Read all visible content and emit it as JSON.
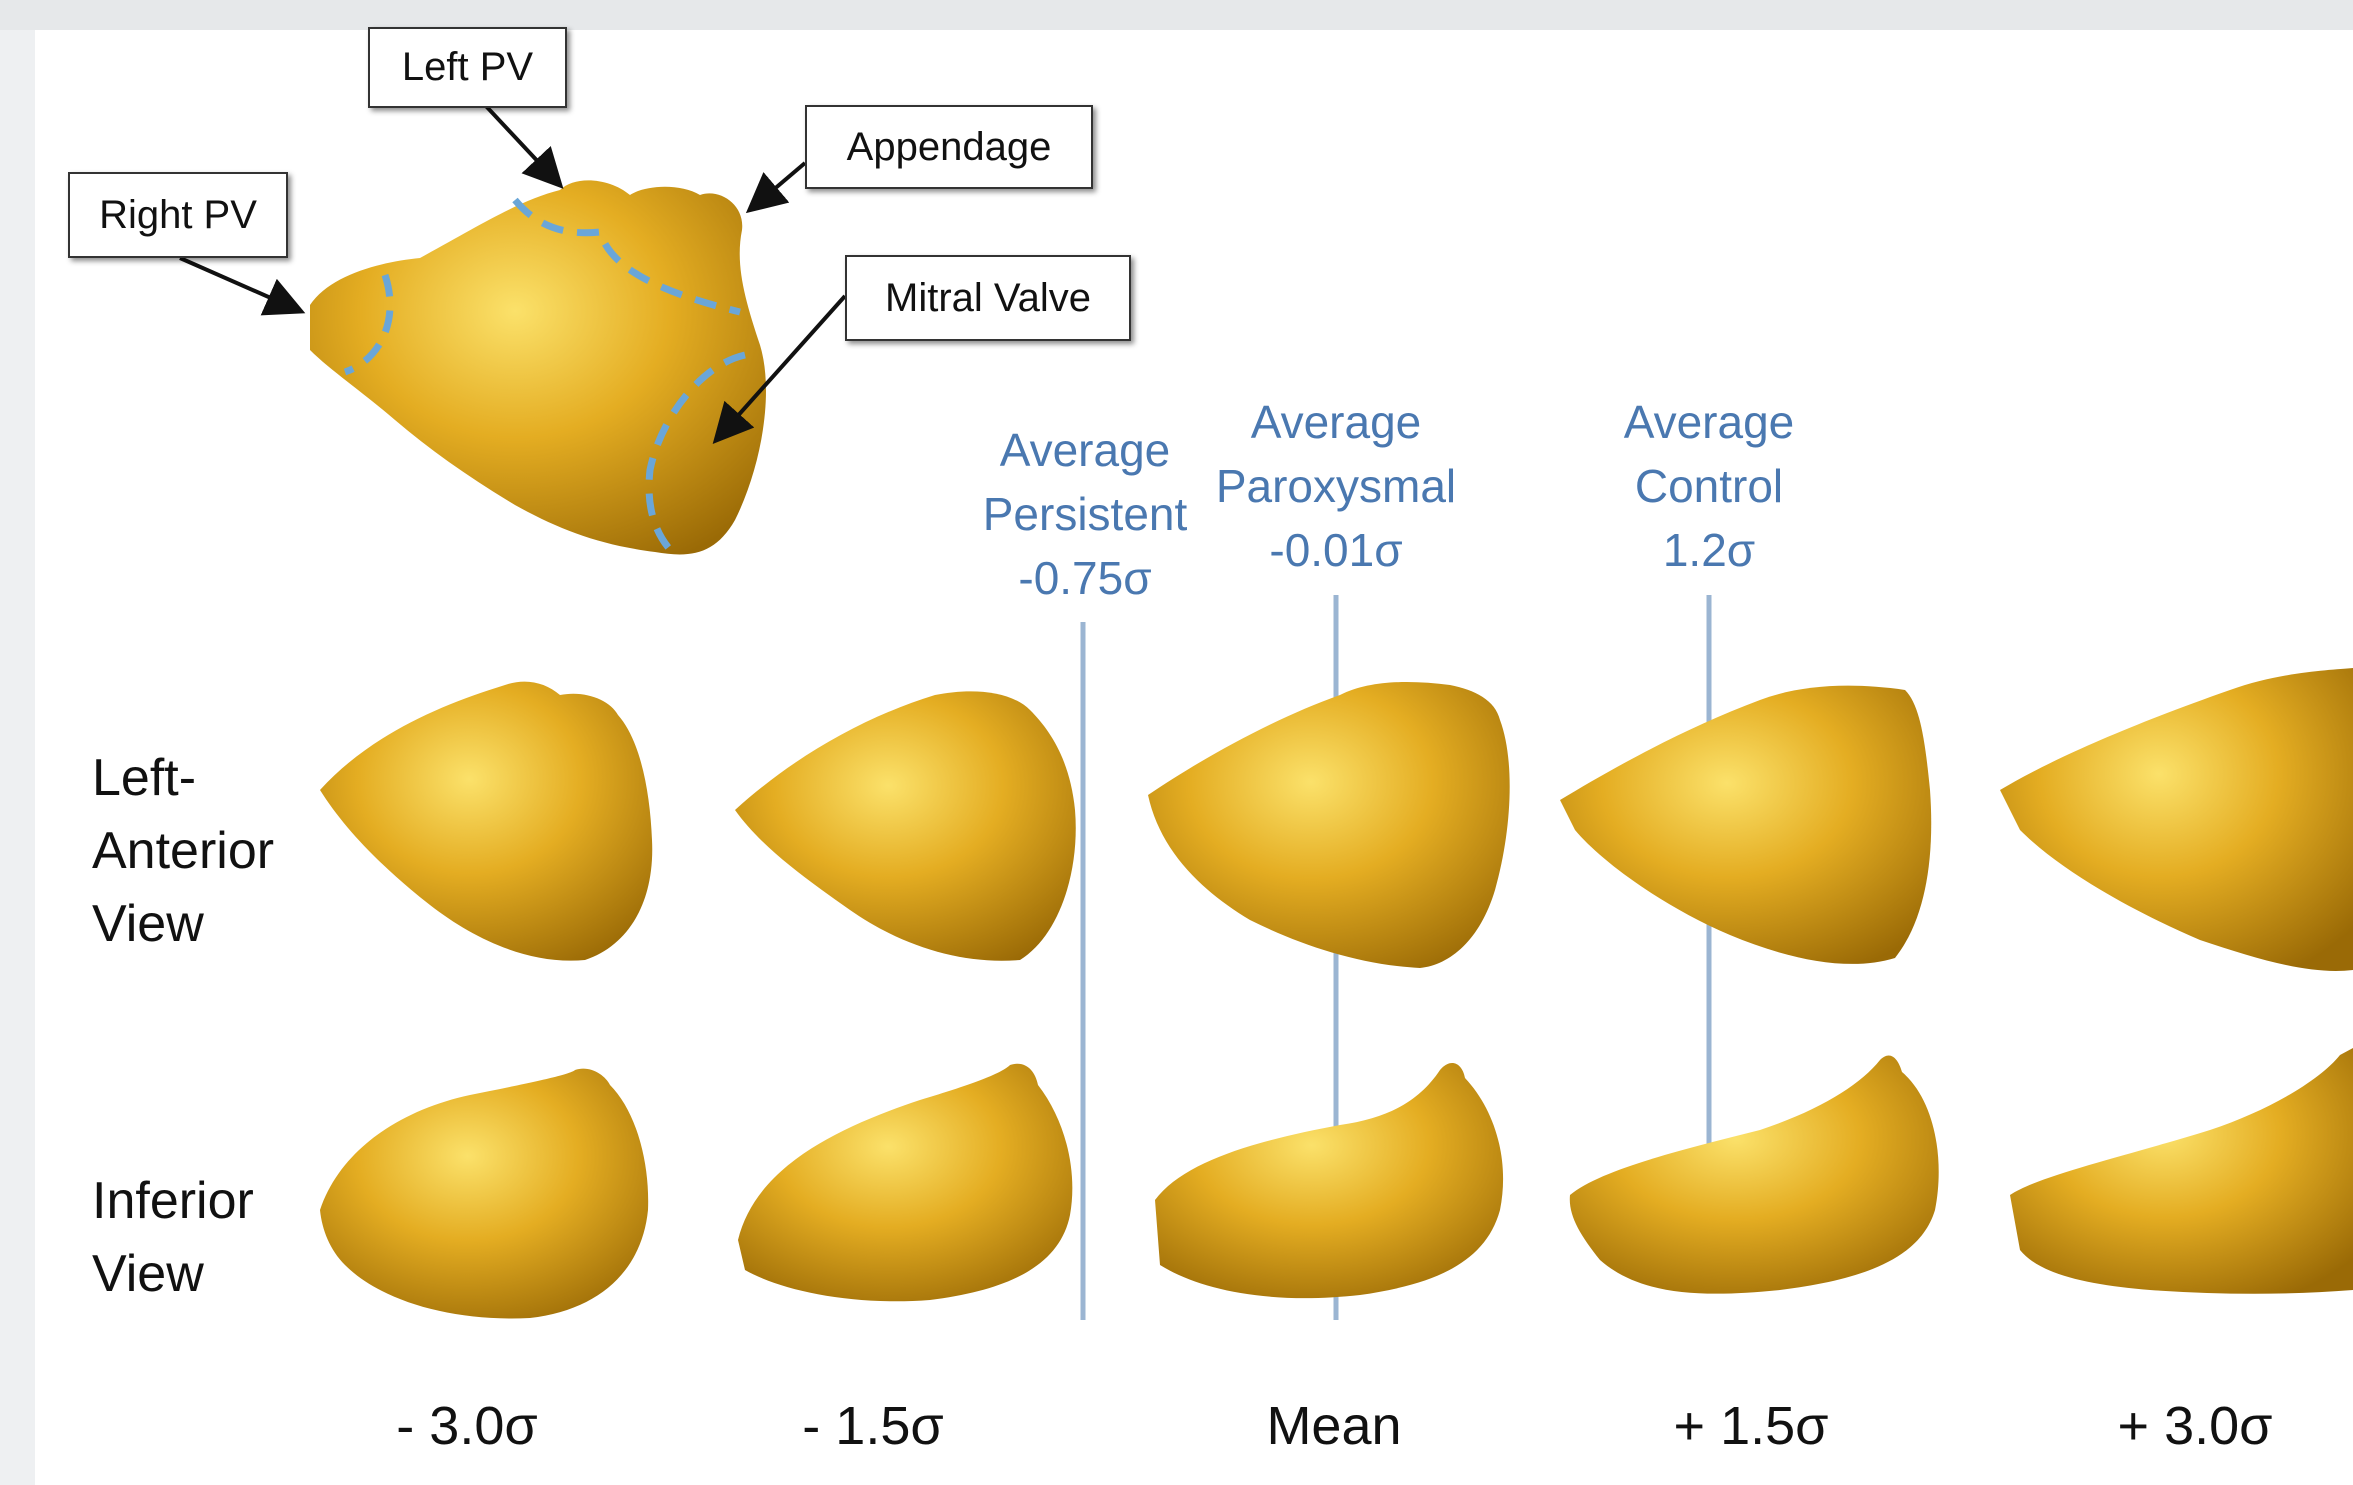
{
  "callouts": {
    "left_pv": "Left PV",
    "appendage": "Appendage",
    "right_pv": "Right PV",
    "mitral_valve": "Mitral Valve"
  },
  "annotations": [
    {
      "line1": "Average",
      "line2": "Persistent",
      "line3": "-0.75σ"
    },
    {
      "line1": "Average",
      "line2": "Paroxysmal",
      "line3": "-0.01σ"
    },
    {
      "line1": "Average",
      "line2": "Control",
      "line3": "1.2σ"
    }
  ],
  "row_labels": {
    "left_anterior": [
      "Left-",
      "Anterior",
      "View"
    ],
    "inferior": [
      "Inferior",
      "View"
    ]
  },
  "column_labels": [
    "- 3.0σ",
    "- 1.5σ",
    "Mean",
    "+ 1.5σ",
    "+ 3.0σ"
  ],
  "colors": {
    "shape_fill": "#d9a21a",
    "shape_highlight": "#f6d24a",
    "shape_shadow": "#a47408",
    "annotation_line": "#9bb5d2",
    "dashed_boundary": "#6aa6d8"
  }
}
